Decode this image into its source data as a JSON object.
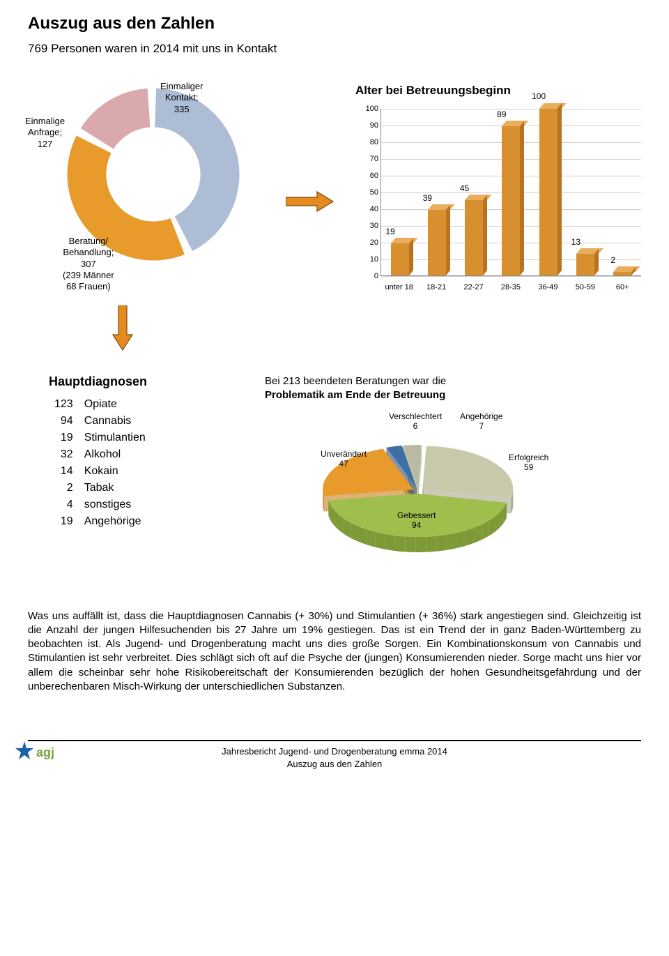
{
  "page_title": "Auszug aus den Zahlen",
  "subtitle": "769 Personen waren in 2014 mit uns in Kontakt",
  "donut": {
    "type": "donut",
    "title": "",
    "segments": [
      {
        "label_lines": [
          "Einmalige",
          "Anfrage;",
          "127"
        ],
        "value": 127,
        "color": "#d9a9ae"
      },
      {
        "label_lines": [
          "Einmaliger",
          "Kontakt;",
          "335"
        ],
        "value": 335,
        "color": "#adbdd6"
      },
      {
        "label_lines": [
          "Beratung/",
          "Behandlung;",
          "307",
          "(239 Männer",
          "68 Frauen)"
        ],
        "value": 307,
        "color": "#e89a2b"
      }
    ],
    "inner_radius": 52,
    "outer_radius": 95,
    "background_color": "#ffffff"
  },
  "bar_chart": {
    "type": "bar",
    "title": "Alter bei Betreuungsbeginn",
    "categories": [
      "unter 18",
      "18-21",
      "22-27",
      "28-35",
      "36-49",
      "50-59",
      "60+"
    ],
    "values": [
      19,
      39,
      45,
      89,
      100,
      13,
      2
    ],
    "bar_color": "#d88f2e",
    "bar_top_color": "#e8ad5d",
    "bar_side_color": "#b8731e",
    "ylim": [
      0,
      100
    ],
    "ytick_step": 10,
    "grid_color": "#cfcfcf",
    "axis_color": "#888888",
    "label_fontsize": 11,
    "title_fontsize": 17
  },
  "arrow": {
    "color": "#e58a1f",
    "border": "#7a4a10"
  },
  "diagnoses": {
    "heading": "Hauptdiagnosen",
    "rows": [
      {
        "n": "123",
        "label": "Opiate"
      },
      {
        "n": "94",
        "label": "Cannabis"
      },
      {
        "n": "19",
        "label": "Stimulantien"
      },
      {
        "n": "32",
        "label": "Alkohol"
      },
      {
        "n": "14",
        "label": "Kokain"
      },
      {
        "n": "2",
        "label": "Tabak"
      },
      {
        "n": "4",
        "label": "sonstiges"
      },
      {
        "n": "19",
        "label": "Angehörige"
      }
    ]
  },
  "pie": {
    "type": "pie-3d",
    "caption_plain": "Bei 213 beendeten Beratungen war die",
    "caption_bold": "Problematik am Ende der Betreuung",
    "slices": [
      {
        "name": "Unverändert",
        "value": 47,
        "color": "#e89a2b",
        "side": "#c57f1d"
      },
      {
        "name": "Verschlechtert",
        "value": 6,
        "color": "#3e6fa3",
        "side": "#2d5078"
      },
      {
        "name": "Angehörige",
        "value": 7,
        "color": "#b8bba0",
        "side": "#969a7f"
      },
      {
        "name": "Erfolgreich",
        "value": 59,
        "color": "#c8c9aa",
        "side": "#a6a88a"
      },
      {
        "name": "Gebessert",
        "value": 94,
        "color": "#9fbf4c",
        "side": "#7e9a36"
      }
    ],
    "labels": {
      "unv": "Unverändert",
      "unv_v": "47",
      "ver": "Verschlechtert",
      "ver_v": "6",
      "ang": "Angehörige",
      "ang_v": "7",
      "erf": "Erfolgreich",
      "erf_v": "59",
      "geb": "Gebessert",
      "geb_v": "94"
    }
  },
  "body_text": "Was uns auffällt ist, dass die Hauptdiagnosen Cannabis (+ 30%) und Stimulantien (+ 36%) stark angestiegen sind. Gleichzeitig ist die Anzahl der jungen Hilfesuchenden bis 27 Jahre um 19% gestiegen. Das ist ein Trend der in ganz Baden-Württemberg zu beobachten ist. Als Jugend- und Drogenberatung macht uns dies große Sorgen. Ein Kombinationskonsum von Cannabis und Stimulantien ist sehr verbreitet. Dies schlägt sich oft auf die Psyche der (jungen) Konsumierenden nieder. Sorge macht uns hier vor allem die scheinbar sehr hohe Risikobereitschaft der Konsumierenden bezüglich der hohen Gesundheitsgefährdung und der unberechenbaren Misch-Wirkung der unterschiedlichen Substanzen.",
  "footer": {
    "line1": "Jahresbericht Jugend- und Drogenberatung emma 2014",
    "line2": "Auszug aus den Zahlen",
    "logo_colors": {
      "star": "#1f5fa8",
      "text": "#7aa33a"
    }
  }
}
